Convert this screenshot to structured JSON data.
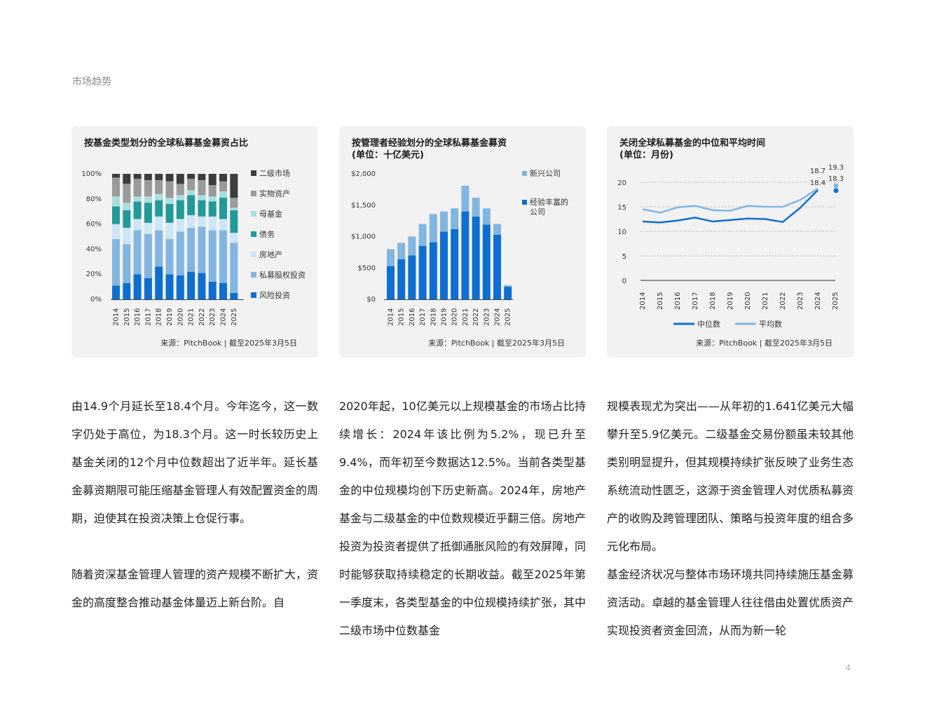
{
  "section_label": "市场趋势",
  "page_number": "4",
  "colors": {
    "card_bg": "#f2f2f2",
    "secondary": "#3d3d3d",
    "real_assets": "#9a9a9a",
    "fund_of_funds": "#a8dede",
    "debt": "#229a9a",
    "real_estate": "#cde6f5",
    "private_equity": "#82b6e0",
    "venture": "#0e6fd0",
    "emerging": "#82b6e0",
    "experienced": "#0e6fd0",
    "median": "#0e6fd0",
    "average": "#82b6e0"
  },
  "chart1": {
    "title": "按基金类型划分的全球私募基金募资占比",
    "source": "来源：PitchBook | 截至2025年3月5日"
  },
  "chart2": {
    "title_line1": "按管理者经验划分的全球私募基金募资",
    "title_line2": "(单位：十亿美元)",
    "source": "来源：PitchBook | 截至2025年3月5日"
  },
  "chart3": {
    "title_line1": "关闭全球私募基金的中位和平均时间",
    "title_line2": "(单位：月份)",
    "source": "来源：PitchBook | 截至2025年3月5日"
  },
  "chart_data": [
    {
      "type": "bar",
      "stacked": true,
      "title": "按基金类型划分的全球私募基金募资占比",
      "categories": [
        "2014",
        "2015",
        "2016",
        "2017",
        "2018",
        "2019",
        "2020",
        "2021",
        "2022",
        "2023",
        "2024",
        "2025"
      ],
      "ylim": [
        0,
        100
      ],
      "yticks": [
        "0%",
        "20%",
        "40%",
        "60%",
        "80%",
        "100%"
      ],
      "series": [
        {
          "name": "风险投资",
          "color": "#0e6fd0",
          "values": [
            11,
            13,
            20,
            17,
            26,
            20,
            19,
            22,
            21,
            14,
            13,
            5
          ]
        },
        {
          "name": "私募股权投资",
          "color": "#82b6e0",
          "values": [
            37,
            31,
            35,
            35,
            29,
            28,
            35,
            35,
            37,
            41,
            42,
            40
          ]
        },
        {
          "name": "房地产",
          "color": "#cde6f5",
          "values": [
            12,
            13,
            9,
            9,
            11,
            13,
            10,
            10,
            8,
            11,
            9,
            8
          ]
        },
        {
          "name": "债务",
          "color": "#229a9a",
          "values": [
            14,
            14,
            14,
            16,
            13,
            15,
            15,
            16,
            13,
            12,
            17,
            18
          ]
        },
        {
          "name": "母基金",
          "color": "#a8dede",
          "values": [
            8,
            6,
            4,
            5,
            5,
            5,
            4,
            4,
            4,
            4,
            5,
            2
          ]
        },
        {
          "name": "实物资产",
          "color": "#9a9a9a",
          "values": [
            15,
            15,
            14,
            13,
            11,
            13,
            9,
            9,
            12,
            9,
            8,
            8
          ]
        },
        {
          "name": "二级市场",
          "color": "#3d3d3d",
          "values": [
            3,
            8,
            4,
            5,
            5,
            6,
            8,
            4,
            5,
            9,
            6,
            19
          ]
        }
      ],
      "legend_position": "right"
    },
    {
      "type": "bar",
      "stacked": true,
      "title": "按管理者经验划分的全球私募基金募资",
      "categories": [
        "2014",
        "2015",
        "2016",
        "2017",
        "2018",
        "2019",
        "2020",
        "2021",
        "2022",
        "2023",
        "2024",
        "2025"
      ],
      "ylim": [
        0,
        2000
      ],
      "yticks": [
        "$0",
        "$500",
        "$1,000",
        "$1,500",
        "$2,000"
      ],
      "series": [
        {
          "name": "经验丰富的公司",
          "color": "#0e6fd0",
          "values": [
            530,
            640,
            700,
            850,
            910,
            1080,
            1120,
            1400,
            1320,
            1190,
            1030,
            200
          ]
        },
        {
          "name": "新兴公司",
          "color": "#82b6e0",
          "values": [
            270,
            260,
            300,
            350,
            450,
            320,
            330,
            410,
            300,
            260,
            170,
            25
          ]
        }
      ],
      "legend_position": "right"
    },
    {
      "type": "line",
      "title": "关闭全球私募基金的中位和平均时间",
      "categories": [
        "2014",
        "2015",
        "2016",
        "2017",
        "2018",
        "2019",
        "2020",
        "2021",
        "2022",
        "2023",
        "2024",
        "2025"
      ],
      "ylim": [
        0,
        20
      ],
      "yticks": [
        "0",
        "5",
        "10",
        "15",
        "20"
      ],
      "series": [
        {
          "name": "中位数",
          "color": "#0e6fd0",
          "values": [
            12.0,
            11.8,
            12.2,
            12.8,
            12.0,
            12.3,
            12.6,
            12.5,
            11.9,
            14.8,
            18.4,
            18.3
          ]
        },
        {
          "name": "平均数",
          "color": "#82b6e0",
          "values": [
            14.5,
            13.8,
            14.9,
            15.2,
            14.3,
            14.2,
            15.2,
            15.0,
            15.0,
            16.4,
            18.7,
            19.3
          ]
        }
      ],
      "annotations": [
        "18.7",
        "18.4",
        "19.3",
        "18.3"
      ],
      "legend_position": "bottom"
    }
  ],
  "columns": [
    {
      "paragraphs": [
        "由14.9个月延长至18.4个月。今年迄今，这一数字仍处于高位，为18.3个月。这一时长较历史上基金关闭的12个月中位数超出了近半年。延长基金募资期限可能压缩基金管理人有效配置资金的周期，迫使其在投资决策上仓促行事。",
        "随着资深基金管理人管理的资产规模不断扩大，资金的高度整合推动基金体量迈上新台阶。自"
      ]
    },
    {
      "paragraphs": [
        "2020年起，10亿美元以上规模基金的市场占比持续增长：2024年该比例为5.2%，现已升至9.4%，而年初至今数据达12.5%。当前各类型基金的中位规模均创下历史新高。2024年，房地产基金与二级基金的中位数规模近乎翻三倍。房地产投资为投资者提供了抵御通胀风险的有效屏障，同时能够获取持续稳定的长期收益。截至2025年第一季度末，各类型基金的中位规模持续扩张，其中二级市场中位数基金"
      ]
    },
    {
      "paragraphs": [
        "规模表现尤为突出——从年初的1.641亿美元大幅攀升至5.9亿美元。二级基金交易份额虽未较其他类别明显提升，但其规模持续扩张反映了业务生态系统流动性匮乏，这源于资金管理人对优质私募资产的收购及跨管理团队、策略与投资年度的组合多元化布局。",
        "基金经济状况与整体市场环境共同持续施压基金募资活动。卓越的基金管理人往往借由处置优质资产实现投资者资金回流，从而为新一轮"
      ]
    }
  ]
}
